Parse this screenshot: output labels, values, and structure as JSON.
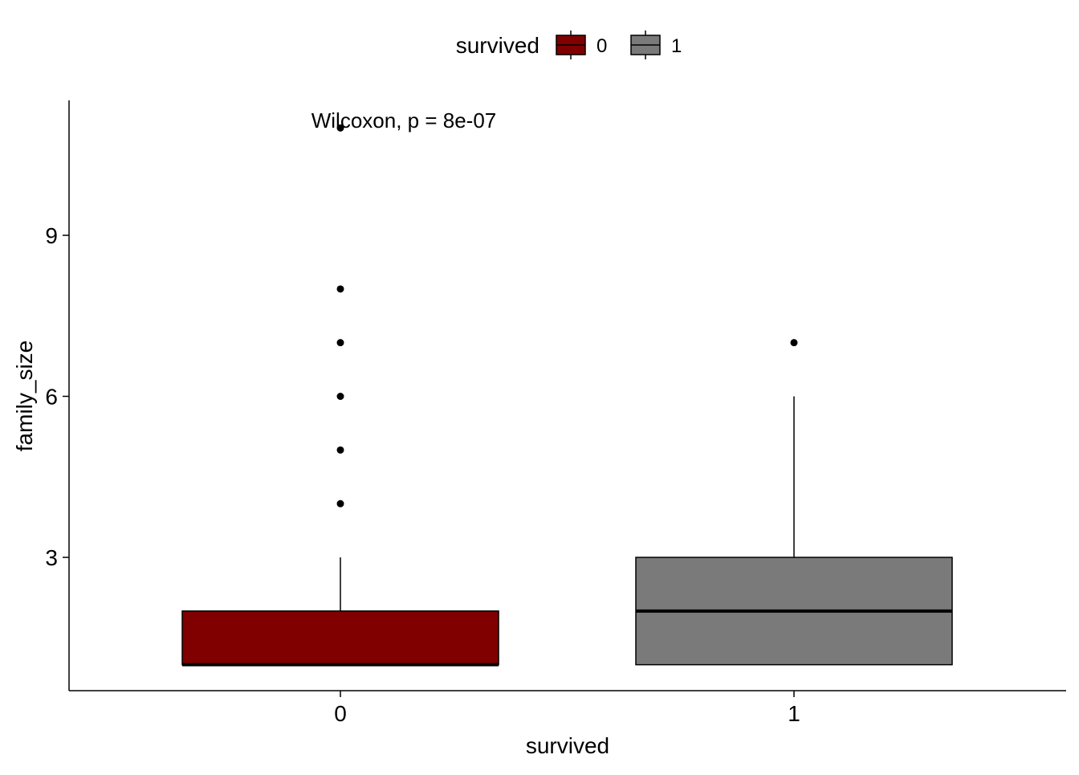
{
  "chart_data": {
    "type": "box",
    "xlabel": "survived",
    "ylabel": "family_size",
    "categories": [
      "0",
      "1"
    ],
    "ylim": [
      0.25,
      11.2
    ],
    "yticks": [
      3,
      6,
      9
    ],
    "annotation": "Wilcoxon, p = 8e-07",
    "legend": {
      "title": "survived",
      "position": "top",
      "entries": [
        {
          "label": "0",
          "color": "#800000"
        },
        {
          "label": "1",
          "color": "#7A7A7A"
        }
      ]
    },
    "boxes": [
      {
        "category": "0",
        "q1": 1,
        "median": 1,
        "q3": 2,
        "whisker_low": 1,
        "whisker_high": 3,
        "outliers": [
          4,
          5,
          6,
          7,
          8,
          11
        ],
        "color": "#800000"
      },
      {
        "category": "1",
        "q1": 1,
        "median": 2,
        "q3": 3,
        "whisker_low": 1,
        "whisker_high": 6,
        "outliers": [
          7
        ],
        "color": "#7A7A7A"
      }
    ],
    "grid": false
  }
}
